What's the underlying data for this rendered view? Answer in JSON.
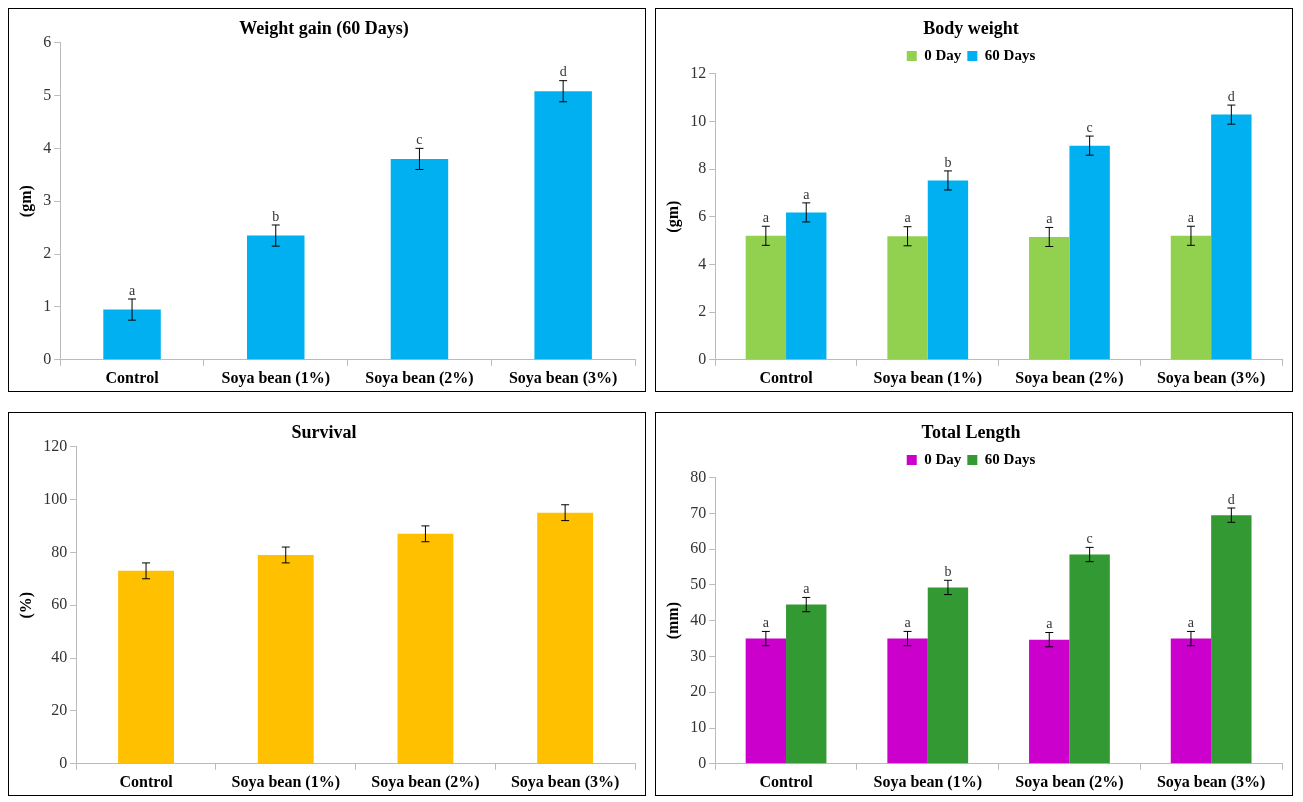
{
  "chart_data": [
    {
      "type": "bar",
      "title": "Weight gain (60 Days)",
      "ylabel": "(gm)",
      "categories": [
        "Control",
        "Soya bean (1%)",
        "Soya bean (2%)",
        "Soya bean (3%)"
      ],
      "values": [
        0.95,
        2.35,
        3.8,
        5.08
      ],
      "errors": [
        0.2,
        0.2,
        0.2,
        0.2
      ],
      "value_labels": [
        "a",
        "b",
        "c",
        "d"
      ],
      "color": "#00b0f0",
      "ylim": [
        0,
        6
      ],
      "yticks": [
        0,
        1,
        2,
        3,
        4,
        5,
        6
      ],
      "grid": false,
      "legend": false
    },
    {
      "type": "bar",
      "title": "Body weight",
      "ylabel": "(gm)",
      "categories": [
        "Control",
        "Soya bean (1%)",
        "Soya bean (2%)",
        "Soya bean (3%)"
      ],
      "series": [
        {
          "name": "0 Day",
          "color": "#92d050",
          "values": [
            5.2,
            5.18,
            5.15,
            5.2
          ],
          "errors": [
            0.4,
            0.4,
            0.4,
            0.4
          ],
          "value_labels": [
            "a",
            "a",
            "a",
            "a"
          ]
        },
        {
          "name": "60 Days",
          "color": "#00b0f0",
          "values": [
            6.18,
            7.52,
            8.98,
            10.28
          ],
          "errors": [
            0.4,
            0.4,
            0.4,
            0.4
          ],
          "value_labels": [
            "a",
            "b",
            "c",
            "d"
          ]
        }
      ],
      "ylim": [
        0,
        12
      ],
      "yticks": [
        0,
        2,
        4,
        6,
        8,
        10,
        12
      ],
      "grid": false,
      "legend": "top"
    },
    {
      "type": "bar",
      "title": "Survival",
      "ylabel": "(%)",
      "categories": [
        "Control",
        "Soya bean (1%)",
        "Soya bean (2%)",
        "Soya bean (3%)"
      ],
      "values": [
        73,
        79,
        87,
        95
      ],
      "errors": [
        3,
        3,
        3,
        3
      ],
      "color": "#ffc000",
      "ylim": [
        0,
        120
      ],
      "yticks": [
        0,
        20,
        40,
        60,
        80,
        100,
        120
      ],
      "grid": false,
      "legend": false
    },
    {
      "type": "bar",
      "title": "Total Length",
      "ylabel": "(mm)",
      "categories": [
        "Control",
        "Soya bean (1%)",
        "Soya bean (2%)",
        "Soya bean (3%)"
      ],
      "series": [
        {
          "name": "0 Day",
          "color": "#cc00cc",
          "values": [
            35,
            35,
            34.7,
            35
          ],
          "errors": [
            2,
            2,
            2,
            2
          ],
          "value_labels": [
            "a",
            "a",
            "a",
            "a"
          ]
        },
        {
          "name": "60 Days",
          "color": "#339933",
          "values": [
            44.5,
            49.3,
            58.5,
            69.5
          ],
          "errors": [
            2,
            2,
            2,
            2
          ],
          "value_labels": [
            "a",
            "b",
            "c",
            "d"
          ]
        }
      ],
      "ylim": [
        0,
        80
      ],
      "yticks": [
        0,
        10,
        20,
        30,
        40,
        50,
        60,
        70,
        80
      ],
      "grid": false,
      "legend": "top"
    }
  ]
}
